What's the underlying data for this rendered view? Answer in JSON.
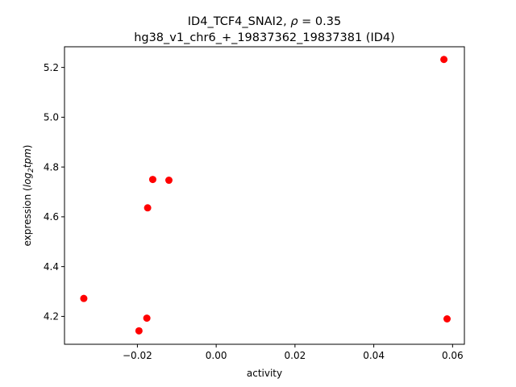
{
  "chart_data": {
    "type": "scatter",
    "title_line1_prefix": "ID4_TCF4_SNAI2, ",
    "title_rho_symbol": "ρ",
    "title_rho_value": " = 0.35",
    "title_line2": "hg38_v1_chr6_+_19837362_19837381 (ID4)",
    "xlabel": "activity",
    "ylabel_prefix": "expression (",
    "ylabel_log": "log",
    "ylabel_sub": "2",
    "ylabel_tpm": "tpm",
    "ylabel_suffix": ")",
    "xlim": [
      -0.0385,
      0.063
    ],
    "ylim": [
      4.088,
      5.283
    ],
    "xticks": [
      -0.02,
      0.0,
      0.02,
      0.04,
      0.06
    ],
    "xtick_labels": [
      "−0.02",
      "0.00",
      "0.02",
      "0.04",
      "0.06"
    ],
    "yticks": [
      4.2,
      4.4,
      4.6,
      4.8,
      5.0,
      5.2
    ],
    "ytick_labels": [
      "4.2",
      "4.4",
      "4.6",
      "4.8",
      "5.0",
      "5.2"
    ],
    "grid": false,
    "marker_color": "#ff0000",
    "points": [
      {
        "x": -0.0336,
        "y": 4.272
      },
      {
        "x": -0.0196,
        "y": 4.142
      },
      {
        "x": -0.0176,
        "y": 4.193
      },
      {
        "x": -0.0174,
        "y": 4.636
      },
      {
        "x": -0.0161,
        "y": 4.75
      },
      {
        "x": -0.012,
        "y": 4.747
      },
      {
        "x": 0.0578,
        "y": 5.232
      },
      {
        "x": 0.0586,
        "y": 4.19
      }
    ]
  }
}
